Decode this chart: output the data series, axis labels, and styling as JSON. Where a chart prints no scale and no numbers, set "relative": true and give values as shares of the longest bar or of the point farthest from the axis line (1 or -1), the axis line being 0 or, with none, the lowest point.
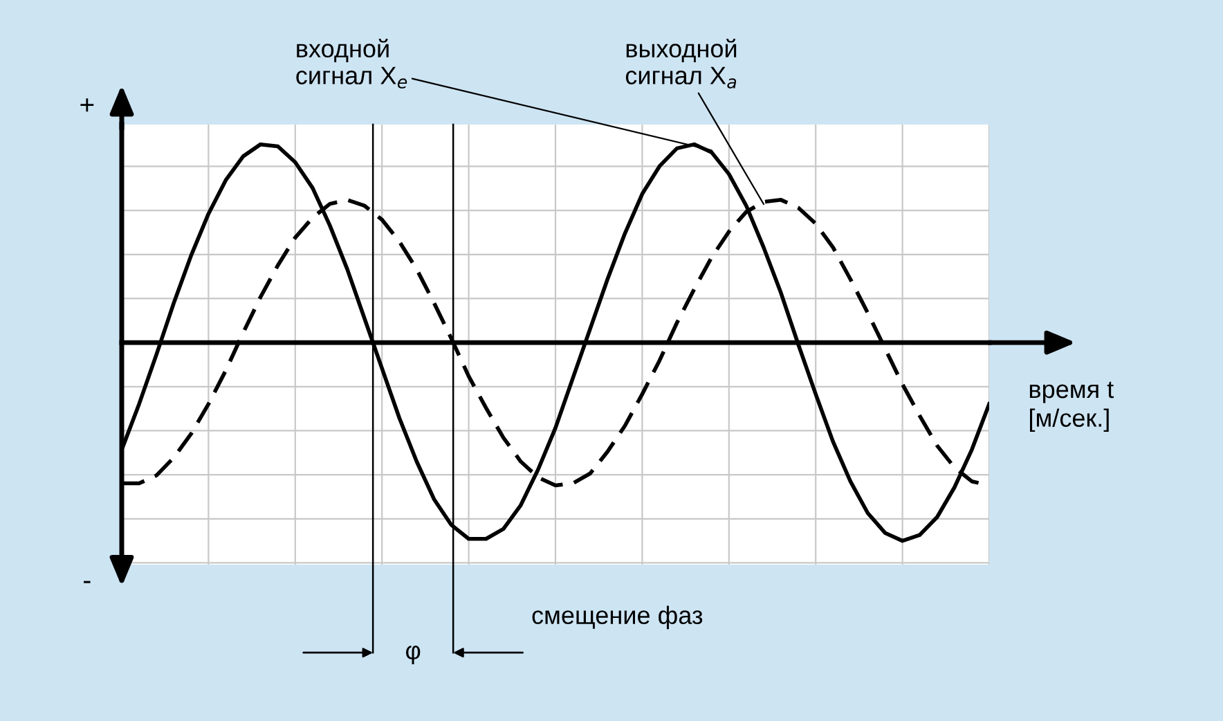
{
  "chart_data": {
    "type": "line",
    "relative": true,
    "grid": true,
    "legend": false,
    "categories": [
      null,
      null,
      null,
      null,
      null,
      null,
      null,
      null,
      null,
      null,
      null,
      null,
      null,
      null,
      null,
      null,
      null,
      null,
      null,
      null,
      null,
      null,
      null,
      null,
      null,
      null,
      null,
      null,
      null,
      null,
      null,
      null,
      null,
      null,
      null,
      null,
      null,
      null,
      null,
      null,
      null,
      null,
      null,
      null,
      null,
      null,
      null,
      null,
      null,
      null,
      null
    ],
    "xlabel": "время t\n[м/сек.]",
    "series": [
      {
        "name": "входной\nсигнал X$_{e}$",
        "color": "#000000",
        "line_style": "solid",
        "values": [
          -0.54,
          -0.31,
          -0.06,
          0.2,
          0.44,
          0.65,
          0.82,
          0.94,
          1.0,
          0.99,
          0.91,
          0.78,
          0.59,
          0.37,
          0.12,
          -0.13,
          -0.38,
          -0.6,
          -0.79,
          -0.92,
          -0.99,
          -0.99,
          -0.94,
          -0.82,
          -0.64,
          -0.43,
          -0.18,
          0.07,
          0.32,
          0.55,
          0.75,
          0.89,
          0.98,
          1.0,
          0.96,
          0.85,
          0.69,
          0.48,
          0.25,
          -0.01,
          -0.26,
          -0.5,
          -0.7,
          -0.86,
          -0.96,
          -1.0,
          -0.97,
          -0.88,
          -0.73,
          -0.54,
          -0.31
        ]
      },
      {
        "name": "выходной\nсигнал X$_{a}$",
        "color": "#000000",
        "line_style": "dashed",
        "values": [
          -0.71,
          -0.71,
          -0.67,
          -0.58,
          -0.46,
          -0.31,
          -0.14,
          0.05,
          0.23,
          0.39,
          0.53,
          0.63,
          0.7,
          0.72,
          0.69,
          0.62,
          0.51,
          0.37,
          0.2,
          0.02,
          -0.17,
          -0.33,
          -0.48,
          -0.6,
          -0.68,
          -0.72,
          -0.71,
          -0.66,
          -0.55,
          -0.42,
          -0.26,
          -0.09,
          0.1,
          0.27,
          0.43,
          0.56,
          0.66,
          0.71,
          0.72,
          0.68,
          0.6,
          0.48,
          0.32,
          0.15,
          -0.03,
          -0.21,
          -0.37,
          -0.52,
          -0.63,
          -0.7,
          -0.72
        ]
      }
    ],
    "annotations": [
      "+",
      "-",
      "φ",
      "смещение фаз"
    ]
  }
}
